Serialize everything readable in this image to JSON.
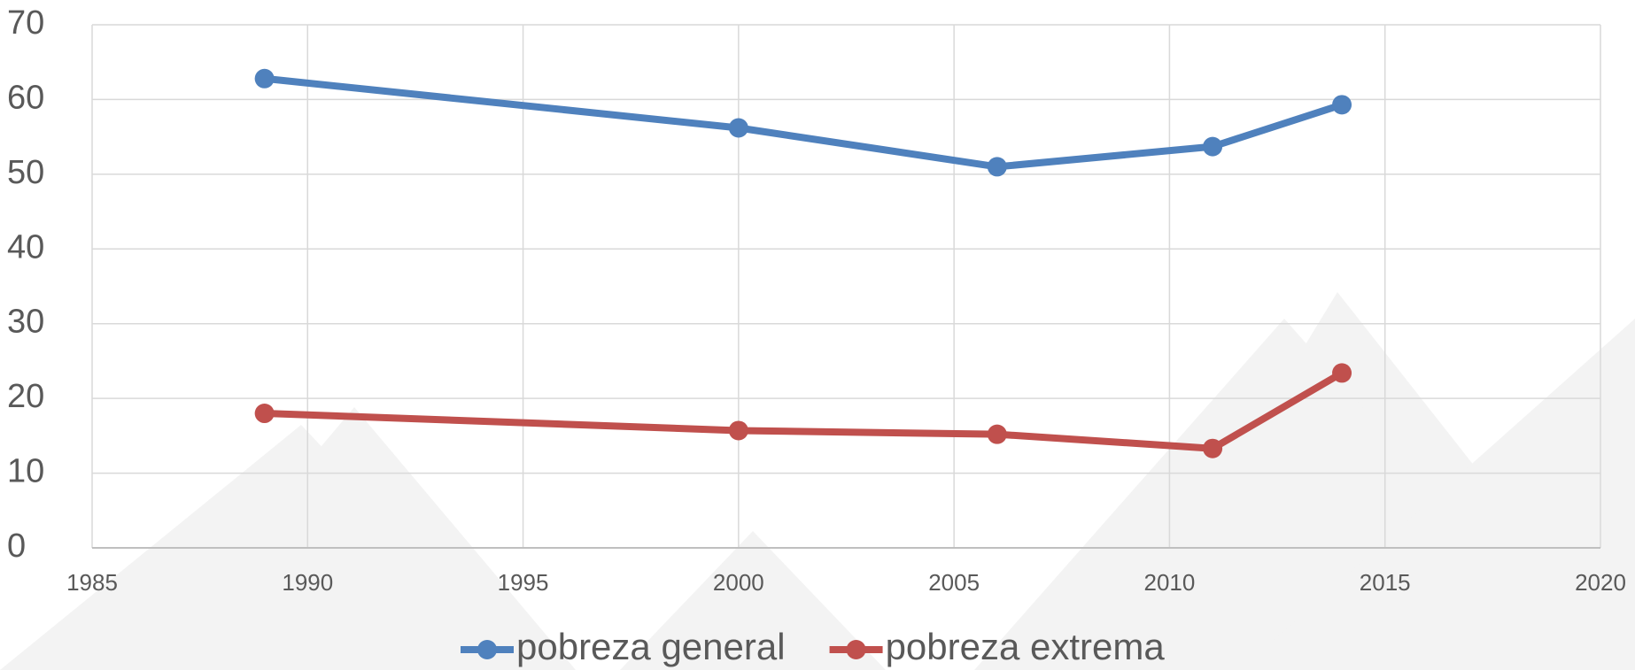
{
  "chart_data": {
    "type": "line",
    "x": [
      1989,
      2000,
      2006,
      2011,
      2014
    ],
    "series": [
      {
        "name": "pobreza general",
        "color": "#4f81bd",
        "values": [
          62.8,
          56.2,
          51.0,
          53.7,
          59.3
        ]
      },
      {
        "name": "pobreza extrema",
        "color": "#c0504d",
        "values": [
          18.0,
          15.7,
          15.2,
          13.3,
          23.4
        ]
      }
    ],
    "xlim": [
      1985,
      2020
    ],
    "xticks": [
      1985,
      1990,
      1995,
      2000,
      2005,
      2010,
      2015,
      2020
    ],
    "ylim": [
      0,
      70
    ],
    "yticks": [
      0,
      10,
      20,
      30,
      40,
      50,
      60,
      70
    ],
    "grid": true,
    "legend": "bottom"
  }
}
